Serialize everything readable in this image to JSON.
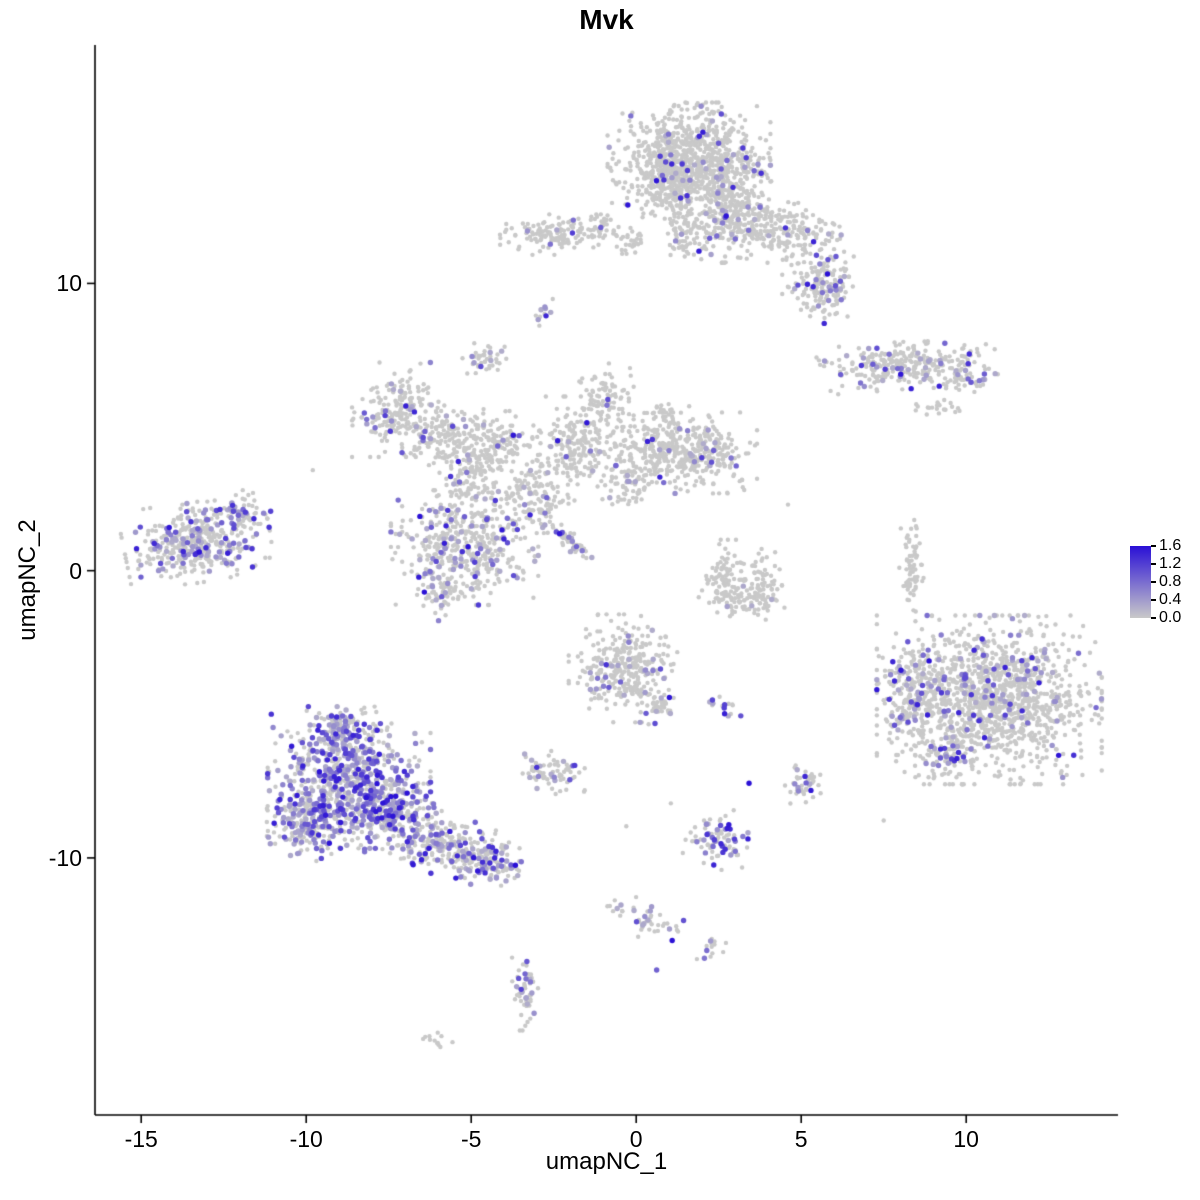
{
  "chart_data": {
    "type": "scatter",
    "title": "Mvk",
    "xlabel": "umapNC_1",
    "ylabel": "umapNC_2",
    "xlim": [
      -16.4,
      14.6
    ],
    "ylim": [
      -18.95,
      18.3
    ],
    "x_ticks": [
      {
        "v": -15,
        "label": "-15"
      },
      {
        "v": -10,
        "label": "-10"
      },
      {
        "v": -5,
        "label": "-5"
      },
      {
        "v": 0,
        "label": "0"
      },
      {
        "v": 5,
        "label": "5"
      },
      {
        "v": 10,
        "label": "10"
      }
    ],
    "y_ticks": [
      {
        "v": -10,
        "label": "-10"
      },
      {
        "v": 0,
        "label": "0"
      },
      {
        "v": 10,
        "label": "10"
      }
    ],
    "legend": {
      "vmin": 0.0,
      "vmax": 1.6,
      "ticks": [
        {
          "v": 1.6,
          "label": "1.6"
        },
        {
          "v": 1.2,
          "label": "1.2"
        },
        {
          "v": 0.8,
          "label": "0.8"
        },
        {
          "v": 0.4,
          "label": "0.4"
        },
        {
          "v": 0.0,
          "label": "0.0"
        }
      ],
      "low_color": "#c9c9c9",
      "high_color": "#2a10d6"
    },
    "point_color_zero": "#c9c9c9",
    "clusters": [
      {
        "x": 1.6,
        "y": 14.3,
        "sx": 1.05,
        "sy": 0.85,
        "n": 850,
        "f": 0.05,
        "rot": 0
      },
      {
        "x": 0.9,
        "y": 13.3,
        "sx": 0.5,
        "sy": 0.5,
        "n": 150,
        "f": 0.04,
        "rot": 0
      },
      {
        "x": 2.8,
        "y": 12.6,
        "sx": 0.55,
        "sy": 0.8,
        "n": 260,
        "f": 0.07,
        "rot": 0
      },
      {
        "x": 1.5,
        "y": 11.9,
        "sx": 0.3,
        "sy": 0.6,
        "n": 90,
        "f": 0.05,
        "rot": 0
      },
      {
        "x": 4.2,
        "y": 11.9,
        "sx": 0.85,
        "sy": 0.45,
        "n": 230,
        "f": 0.06,
        "rot": -15
      },
      {
        "x": 5.6,
        "y": 9.9,
        "sx": 0.5,
        "sy": 0.55,
        "n": 170,
        "f": 0.1,
        "rot": 0
      },
      {
        "x": -2.6,
        "y": 11.7,
        "sx": 0.65,
        "sy": 0.3,
        "n": 120,
        "f": 0.06,
        "rot": 0
      },
      {
        "x": -1.2,
        "y": 11.9,
        "sx": 0.3,
        "sy": 0.25,
        "n": 40,
        "f": 0.05,
        "rot": 0
      },
      {
        "x": -0.1,
        "y": 11.5,
        "sx": 0.25,
        "sy": 0.2,
        "n": 30,
        "f": 0.0,
        "rot": 0
      },
      {
        "x": -2.85,
        "y": 9.0,
        "sx": 0.15,
        "sy": 0.2,
        "n": 14,
        "f": 0.5,
        "rot": 0
      },
      {
        "x": -4.6,
        "y": 7.4,
        "sx": 0.3,
        "sy": 0.3,
        "n": 40,
        "f": 0.3,
        "rot": 0
      },
      {
        "x": 8.2,
        "y": 7.15,
        "sx": 1.15,
        "sy": 0.35,
        "n": 270,
        "f": 0.13,
        "rot": 5
      },
      {
        "x": 9.9,
        "y": 6.7,
        "sx": 0.45,
        "sy": 0.25,
        "n": 50,
        "f": 0.15,
        "rot": 0
      },
      {
        "x": 9.1,
        "y": 5.6,
        "sx": 0.35,
        "sy": 0.15,
        "n": 22,
        "f": 0.0,
        "rot": 0
      },
      {
        "x": -7.2,
        "y": 5.6,
        "sx": 0.6,
        "sy": 0.7,
        "n": 210,
        "f": 0.12,
        "rot": 0
      },
      {
        "x": -5.8,
        "y": 4.7,
        "sx": 0.5,
        "sy": 0.5,
        "n": 130,
        "f": 0.08,
        "rot": 0
      },
      {
        "x": -4.9,
        "y": 3.4,
        "sx": 0.5,
        "sy": 0.65,
        "n": 140,
        "f": 0.05,
        "rot": 0
      },
      {
        "x": -4.2,
        "y": 4.5,
        "sx": 0.45,
        "sy": 0.45,
        "n": 110,
        "f": 0.05,
        "rot": 0
      },
      {
        "x": -3.1,
        "y": 2.6,
        "sx": 0.55,
        "sy": 0.55,
        "n": 130,
        "f": 0.04,
        "rot": 0
      },
      {
        "x": -1.7,
        "y": 4.3,
        "sx": 0.65,
        "sy": 0.75,
        "n": 230,
        "f": 0.05,
        "rot": 0
      },
      {
        "x": -0.9,
        "y": 6.0,
        "sx": 0.35,
        "sy": 0.55,
        "n": 80,
        "f": 0.04,
        "rot": 0
      },
      {
        "x": 0.4,
        "y": 4.2,
        "sx": 0.55,
        "sy": 0.55,
        "n": 140,
        "f": 0.04,
        "rot": 0
      },
      {
        "x": 1.9,
        "y": 4.1,
        "sx": 0.75,
        "sy": 0.6,
        "n": 280,
        "f": 0.05,
        "rot": 0
      },
      {
        "x": -0.2,
        "y": 3.0,
        "sx": 0.35,
        "sy": 0.45,
        "n": 60,
        "f": 0.03,
        "rot": 0
      },
      {
        "x": 0.9,
        "y": 5.3,
        "sx": 0.3,
        "sy": 0.3,
        "n": 40,
        "f": 0.0,
        "rot": 0
      },
      {
        "x": -13.3,
        "y": 1.0,
        "sx": 0.95,
        "sy": 0.6,
        "n": 400,
        "f": 0.3,
        "rot": 10
      },
      {
        "x": -11.9,
        "y": 2.0,
        "sx": 0.35,
        "sy": 0.35,
        "n": 50,
        "f": 0.2,
        "rot": 0
      },
      {
        "x": -5.2,
        "y": 0.8,
        "sx": 0.95,
        "sy": 0.85,
        "n": 430,
        "f": 0.18,
        "rot": 0
      },
      {
        "x": -5.9,
        "y": -0.8,
        "sx": 0.3,
        "sy": 0.4,
        "n": 50,
        "f": 0.1,
        "rot": 0
      },
      {
        "x": -2.1,
        "y": 1.1,
        "sx": 0.5,
        "sy": 0.12,
        "n": 60,
        "f": 0.25,
        "rot": -40
      },
      {
        "x": 2.6,
        "y": -0.1,
        "sx": 0.3,
        "sy": 0.5,
        "n": 70,
        "f": 0.01,
        "rot": 0
      },
      {
        "x": 3.2,
        "y": -1.0,
        "sx": 0.55,
        "sy": 0.3,
        "n": 90,
        "f": 0.01,
        "rot": 0
      },
      {
        "x": 3.9,
        "y": -0.3,
        "sx": 0.22,
        "sy": 0.45,
        "n": 55,
        "f": 0.01,
        "rot": 0
      },
      {
        "x": 8.35,
        "y": 0.0,
        "sx": 0.16,
        "sy": 0.75,
        "n": 70,
        "f": 0.02,
        "rot": 0
      },
      {
        "x": -0.4,
        "y": -3.4,
        "sx": 0.7,
        "sy": 0.8,
        "n": 310,
        "f": 0.12,
        "rot": 0
      },
      {
        "x": 0.7,
        "y": -4.8,
        "sx": 0.3,
        "sy": 0.3,
        "n": 45,
        "f": 0.1,
        "rot": 0
      },
      {
        "x": 2.7,
        "y": -4.7,
        "sx": 0.2,
        "sy": 0.17,
        "n": 16,
        "f": 0.45,
        "rot": 0
      },
      {
        "x": 10.7,
        "y": -4.5,
        "sx": 1.45,
        "sy": 1.25,
        "n": 1350,
        "f": 0.1,
        "rot": 0
      },
      {
        "x": 8.4,
        "y": -4.3,
        "sx": 0.45,
        "sy": 0.9,
        "n": 140,
        "f": 0.15,
        "rot": 0
      },
      {
        "x": 9.4,
        "y": -6.4,
        "sx": 0.4,
        "sy": 0.4,
        "n": 60,
        "f": 0.1,
        "rot": 0
      },
      {
        "x": -2.5,
        "y": -7.0,
        "sx": 0.4,
        "sy": 0.33,
        "n": 70,
        "f": 0.15,
        "rot": 0
      },
      {
        "x": 5.1,
        "y": -7.4,
        "sx": 0.28,
        "sy": 0.33,
        "n": 45,
        "f": 0.15,
        "rot": 0
      },
      {
        "x": -8.7,
        "y": -7.2,
        "sx": 1.05,
        "sy": 1.05,
        "n": 650,
        "f": 0.5,
        "rot": 0
      },
      {
        "x": -9.9,
        "y": -8.7,
        "sx": 0.55,
        "sy": 0.6,
        "n": 200,
        "f": 0.45,
        "rot": 0
      },
      {
        "x": -7.6,
        "y": -8.4,
        "sx": 0.6,
        "sy": 0.55,
        "n": 200,
        "f": 0.45,
        "rot": 0
      },
      {
        "x": -6.2,
        "y": -9.3,
        "sx": 0.75,
        "sy": 0.5,
        "n": 220,
        "f": 0.3,
        "rot": -20
      },
      {
        "x": -4.6,
        "y": -10.1,
        "sx": 0.6,
        "sy": 0.4,
        "n": 150,
        "f": 0.35,
        "rot": -15
      },
      {
        "x": -8.9,
        "y": -5.5,
        "sx": 0.5,
        "sy": 0.35,
        "n": 90,
        "f": 0.4,
        "rot": 0
      },
      {
        "x": 2.4,
        "y": -9.4,
        "sx": 0.42,
        "sy": 0.45,
        "n": 85,
        "f": 0.3,
        "rot": 0
      },
      {
        "x": 0.2,
        "y": -12.1,
        "sx": 0.6,
        "sy": 0.28,
        "n": 45,
        "f": 0.2,
        "rot": -15
      },
      {
        "x": 2.25,
        "y": -13.1,
        "sx": 0.2,
        "sy": 0.2,
        "n": 14,
        "f": 0.1,
        "rot": 0
      },
      {
        "x": -3.4,
        "y": -14.6,
        "sx": 0.22,
        "sy": 0.6,
        "n": 55,
        "f": 0.25,
        "rot": 0
      },
      {
        "x": -6.1,
        "y": -16.3,
        "sx": 0.3,
        "sy": 0.12,
        "n": 12,
        "f": 0.0,
        "rot": 0
      }
    ],
    "singles": [
      {
        "x": 3.42,
        "y": -7.4,
        "v": 1.6
      },
      {
        "x": 0.62,
        "y": -13.9,
        "v": 0.9
      },
      {
        "x": 1.05,
        "y": -8.1,
        "v": 0.0
      },
      {
        "x": -0.3,
        "y": -8.9,
        "v": 0.0
      },
      {
        "x": 6.3,
        "y": 11.1,
        "v": 0.0
      },
      {
        "x": -9.8,
        "y": 3.5,
        "v": 0.0
      },
      {
        "x": 4.6,
        "y": 2.3,
        "v": 0.0
      },
      {
        "x": 7.5,
        "y": -8.7,
        "v": 0.0
      }
    ]
  }
}
